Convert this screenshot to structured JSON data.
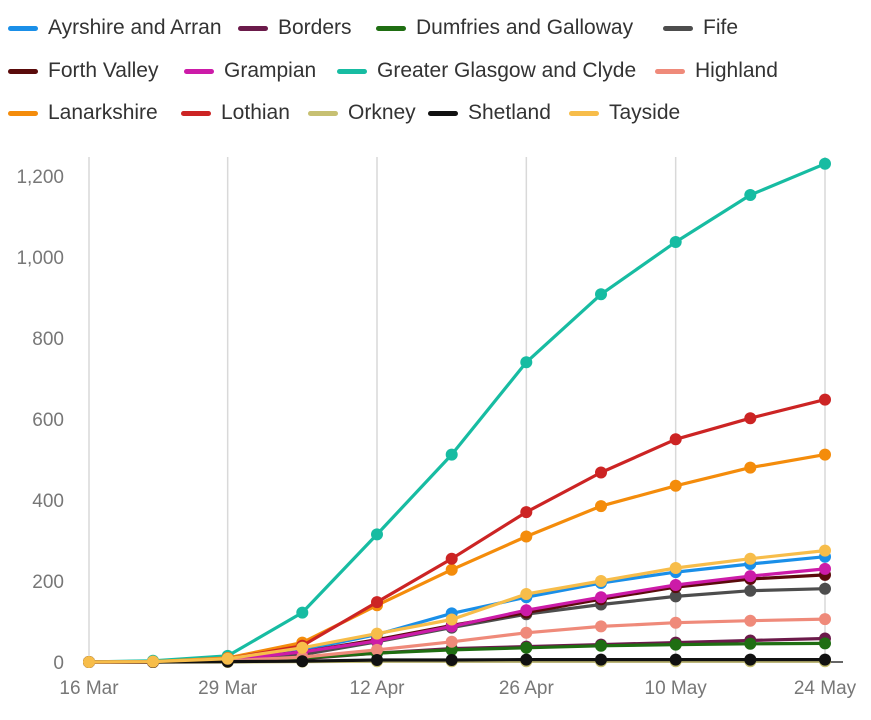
{
  "chart_data": {
    "type": "line",
    "x_labels": [
      "16 Mar",
      "29 Mar",
      "12 Apr",
      "26 Apr",
      "10 May",
      "24 May"
    ],
    "x_dates": [
      "2020-03-16",
      "2020-03-22",
      "2020-03-29",
      "2020-04-05",
      "2020-04-12",
      "2020-04-19",
      "2020-04-26",
      "2020-05-03",
      "2020-05-10",
      "2020-05-17",
      "2020-05-24"
    ],
    "ylim": [
      0,
      1250
    ],
    "y_ticks": [
      0,
      200,
      400,
      600,
      800,
      1000,
      1200
    ],
    "y_tick_labels": [
      "0",
      "200",
      "400",
      "600",
      "800",
      "1,000",
      "1,200"
    ],
    "grid": "vertical",
    "legend_position": "top",
    "series": [
      {
        "name": "Ayrshire and Arran",
        "color": "#1a8fe8",
        "values": [
          0,
          1,
          8,
          30,
          68,
          120,
          160,
          195,
          222,
          242,
          260
        ]
      },
      {
        "name": "Borders",
        "color": "#6b1a4a",
        "values": [
          0,
          0,
          2,
          8,
          22,
          33,
          38,
          43,
          48,
          53,
          58
        ]
      },
      {
        "name": "Dumfries and Galloway",
        "color": "#1f6e12",
        "values": [
          0,
          0,
          2,
          10,
          22,
          30,
          35,
          40,
          43,
          45,
          46
        ]
      },
      {
        "name": "Fife",
        "color": "#4d4d4d",
        "values": [
          0,
          0,
          4,
          18,
          50,
          85,
          118,
          142,
          162,
          176,
          181
        ]
      },
      {
        "name": "Forth Valley",
        "color": "#5a0b0b",
        "values": [
          0,
          0,
          6,
          25,
          55,
          90,
          122,
          155,
          185,
          205,
          215
        ]
      },
      {
        "name": "Grampian",
        "color": "#cc1ba8",
        "values": [
          0,
          0,
          5,
          25,
          52,
          88,
          128,
          160,
          190,
          212,
          230
        ]
      },
      {
        "name": "Greater Glasgow and Clyde",
        "color": "#17bca2",
        "values": [
          0,
          3,
          15,
          122,
          315,
          512,
          740,
          908,
          1037,
          1153,
          1230
        ]
      },
      {
        "name": "Highland",
        "color": "#ef8a7a",
        "values": [
          0,
          0,
          3,
          12,
          30,
          50,
          72,
          88,
          97,
          102,
          106
        ]
      },
      {
        "name": "Lanarkshire",
        "color": "#f48c0b",
        "values": [
          0,
          1,
          10,
          48,
          140,
          228,
          310,
          385,
          435,
          480,
          512
        ]
      },
      {
        "name": "Lothian",
        "color": "#cc2424",
        "values": [
          0,
          0,
          8,
          40,
          148,
          255,
          370,
          468,
          550,
          602,
          648
        ]
      },
      {
        "name": "Orkney",
        "color": "#c7c072",
        "values": [
          0,
          0,
          0,
          1,
          2,
          2,
          2,
          2,
          2,
          2,
          2
        ]
      },
      {
        "name": "Shetland",
        "color": "#111111",
        "values": [
          0,
          0,
          1,
          2,
          5,
          5,
          6,
          6,
          6,
          6,
          6
        ]
      },
      {
        "name": "Tayside",
        "color": "#f7bd4a",
        "values": [
          0,
          1,
          8,
          35,
          70,
          105,
          168,
          200,
          232,
          255,
          275
        ]
      }
    ]
  }
}
